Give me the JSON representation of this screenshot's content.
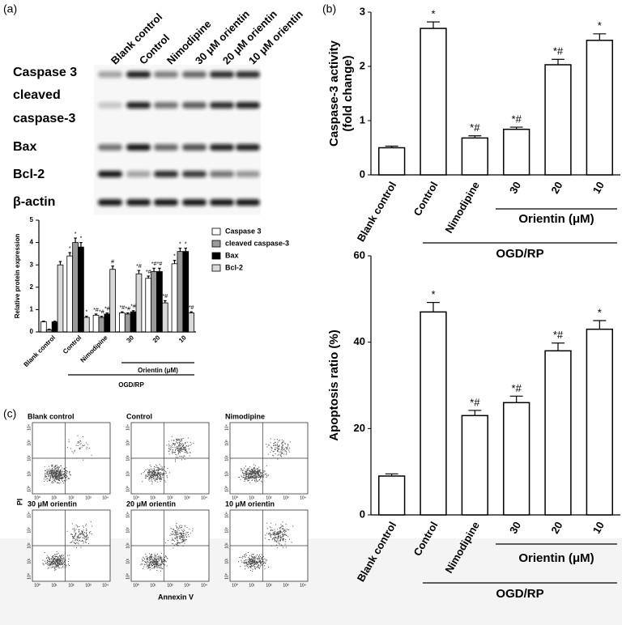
{
  "panel_labels": [
    "(a)",
    "(b)",
    "(c)"
  ],
  "blot": {
    "lanes": [
      "Blank control",
      "Control",
      "Nimodipine",
      "30 μM orientin",
      "20 μM orientin",
      "10 μM orientin"
    ],
    "rows": [
      "Caspase 3",
      "cleaved",
      "caspase-3",
      "Bax",
      "Bcl-2",
      "β-actin"
    ]
  },
  "flow": {
    "titles": [
      "Blank control",
      "Control",
      "Nimodipine",
      "30 μM orientin",
      "20 μM orientin",
      "10 μM orientin"
    ],
    "y_label": "PI",
    "x_label": "Annexin V",
    "ticks": [
      "10⁰",
      "10¹",
      "10²",
      "10³",
      "10⁴"
    ]
  },
  "chart_data": [
    {
      "type": "bar",
      "categories": [
        "Blank control",
        "Control",
        "Nimodipine",
        "30",
        "20",
        "10"
      ],
      "ylabel": [
        "Relative protein expression"
      ],
      "ylim": [
        0,
        5
      ],
      "yticks": [
        0,
        1,
        2,
        3,
        4,
        5
      ],
      "group_label": "Orientin (μM)",
      "condition_label": "OGD/RP",
      "series": [
        {
          "name": "Caspase 3",
          "color": "#ffffff",
          "values": [
            0.45,
            3.4,
            0.75,
            0.85,
            2.4,
            3.05
          ],
          "errors": [
            0.03,
            0.15,
            0.05,
            0.05,
            0.1,
            0.15
          ],
          "annotations": [
            null,
            "*",
            "*#",
            "*#",
            "*#",
            "*"
          ]
        },
        {
          "name": "cleaved caspase-3",
          "color": "#9a9a9a",
          "values": [
            0.1,
            4.0,
            0.65,
            0.8,
            2.7,
            3.6
          ],
          "errors": [
            0.02,
            0.2,
            0.05,
            0.05,
            0.15,
            0.15
          ],
          "annotations": [
            null,
            "*",
            "*#",
            "*#",
            "*#",
            "*"
          ]
        },
        {
          "name": "Bax",
          "color": "#000000",
          "values": [
            0.45,
            3.8,
            0.8,
            0.9,
            2.7,
            3.6
          ],
          "errors": [
            0.03,
            0.2,
            0.05,
            0.05,
            0.15,
            0.15
          ],
          "annotations": [
            null,
            "*",
            "*#",
            "*#",
            "*#",
            "*"
          ]
        },
        {
          "name": "Bcl-2",
          "color": "#d9d9d9",
          "values": [
            3.0,
            0.65,
            2.8,
            2.6,
            1.3,
            0.85
          ],
          "errors": [
            0.15,
            0.05,
            0.15,
            0.15,
            0.1,
            0.05
          ],
          "annotations": [
            null,
            "*",
            "#",
            "*#",
            "*#",
            "*#"
          ]
        }
      ]
    },
    {
      "type": "bar",
      "categories": [
        "Blank control",
        "Control",
        "Nimodipine",
        "30",
        "20",
        "10"
      ],
      "ylabel": [
        "Caspase-3 activity",
        "(fold change)"
      ],
      "ylim": [
        0,
        3
      ],
      "yticks": [
        0,
        1,
        2,
        3
      ],
      "group_label": "Orientin (μM)",
      "condition_label": "OGD/RP",
      "color": "#ffffff",
      "values": [
        0.5,
        2.7,
        0.68,
        0.84,
        2.03,
        2.48
      ],
      "errors": [
        0.03,
        0.12,
        0.04,
        0.04,
        0.1,
        0.12
      ],
      "annotations": [
        null,
        "*",
        "*#",
        "*#",
        "*#",
        "*"
      ]
    },
    {
      "type": "bar",
      "categories": [
        "Blank control",
        "Control",
        "Nimodipine",
        "30",
        "20",
        "10"
      ],
      "ylabel": [
        "Apoptosis ratio (%)"
      ],
      "ylim": [
        0,
        60
      ],
      "yticks": [
        0,
        20,
        40,
        60
      ],
      "group_label": "Orientin (μM)",
      "condition_label": "OGD/RP",
      "color": "#ffffff",
      "values": [
        9,
        47,
        23,
        26,
        38,
        43
      ],
      "errors": [
        0.5,
        2.2,
        1.2,
        1.5,
        1.8,
        2.0
      ],
      "annotations": [
        null,
        "*",
        "*#",
        "*#",
        "*#",
        "*"
      ]
    }
  ]
}
